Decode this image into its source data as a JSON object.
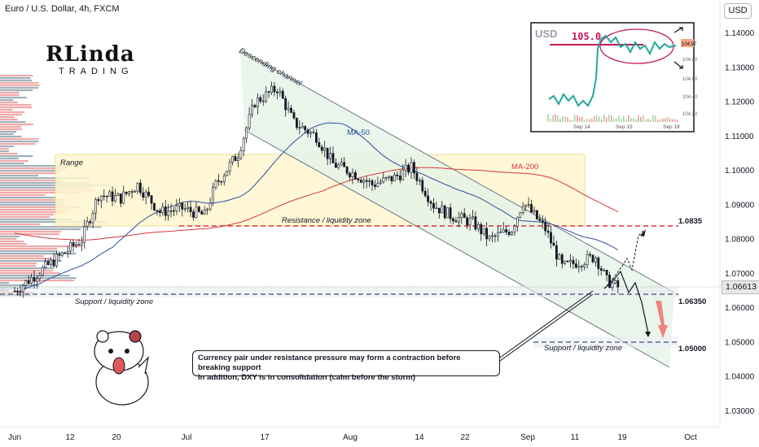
{
  "header": {
    "title": "Euro / U.S. Dollar, 4h, FXCM",
    "currency_button": "USD"
  },
  "logo": {
    "main": "RLinda",
    "sub": "TRADING"
  },
  "colors": {
    "bull": "#26a69a",
    "bear": "#ef5350",
    "candle": "#131722",
    "ma50": "#2a4f9c",
    "ma200": "#d8343a",
    "range_fill": "#fff3c4",
    "channel_fill": "#e9f5ec",
    "resistance": "#d8343a",
    "support": "#5b6b86"
  },
  "annotations": {
    "range": "Range",
    "channel": "Descending channel",
    "ma50": "MA-50",
    "ma200": "MA-200",
    "resistance": "Resistance / liquidity zone",
    "support1": "Support / liquidity zone",
    "support2": "Support / liquidity zone",
    "callout_line1": "Currency pair under resistance pressure may form a contraction before breaking support",
    "callout_line2": "In addition, DXY is in consolidation (calm before the storm)"
  },
  "levels": [
    {
      "label": "1.0835",
      "value": 1.0835
    },
    {
      "label": "1.06350",
      "value": 1.0635
    },
    {
      "label": "1.05000",
      "value": 1.05
    }
  ],
  "last_price": "1.06613",
  "inset": {
    "symbol": "USD",
    "level_label": "105.0",
    "price_tag": "104.97",
    "y_ticks": [
      "104.80",
      "104.60",
      "104.40",
      "104.20"
    ],
    "x_ticks": [
      "Sep 14",
      "Sep 15",
      "Sep 18"
    ]
  },
  "chart_data": {
    "type": "candlestick",
    "title": "Euro / U.S. Dollar, 4h, FXCM",
    "x_tick_labels": [
      "Jun",
      "12",
      "20",
      "Jul",
      "17",
      "Aug",
      "14",
      "22",
      "Sep",
      "11",
      "19",
      "Oct"
    ],
    "y_tick_labels": [
      "1.14000",
      "1.13000",
      "1.12000",
      "1.11000",
      "1.10000",
      "1.09000",
      "1.08000",
      "1.07000",
      "1.06000",
      "1.05000",
      "1.04000",
      "1.03000"
    ],
    "ylim": [
      1.025,
      1.145
    ],
    "price_path": [
      [
        "Jun 1",
        1.065
      ],
      [
        "Jun 5",
        1.07
      ],
      [
        "Jun 9",
        1.075
      ],
      [
        "Jun 13",
        1.08
      ],
      [
        "Jun 16",
        1.093
      ],
      [
        "Jun 20",
        1.092
      ],
      [
        "Jun 23",
        1.096
      ],
      [
        "Jun 27",
        1.088
      ],
      [
        "Jul 1",
        1.089
      ],
      [
        "Jul 5",
        1.087
      ],
      [
        "Jul 7",
        1.096
      ],
      [
        "Jul 11",
        1.105
      ],
      [
        "Jul 14",
        1.12
      ],
      [
        "Jul 18",
        1.124
      ],
      [
        "Jul 21",
        1.114
      ],
      [
        "Jul 25",
        1.11
      ],
      [
        "Jul 28",
        1.102
      ],
      [
        "Aug 1",
        1.099
      ],
      [
        "Aug 4",
        1.096
      ],
      [
        "Aug 8",
        1.098
      ],
      [
        "Aug 11",
        1.101
      ],
      [
        "Aug 15",
        1.09
      ],
      [
        "Aug 18",
        1.087
      ],
      [
        "Aug 22",
        1.085
      ],
      [
        "Aug 25",
        1.08
      ],
      [
        "Aug 29",
        1.083
      ],
      [
        "Aug 31",
        1.091
      ],
      [
        "Sep 4",
        1.083
      ],
      [
        "Sep 7",
        1.072
      ],
      [
        "Sep 11",
        1.074
      ],
      [
        "Sep 13",
        1.075
      ],
      [
        "Sep 15",
        1.068
      ],
      [
        "Sep 17",
        1.0661
      ]
    ]
  }
}
